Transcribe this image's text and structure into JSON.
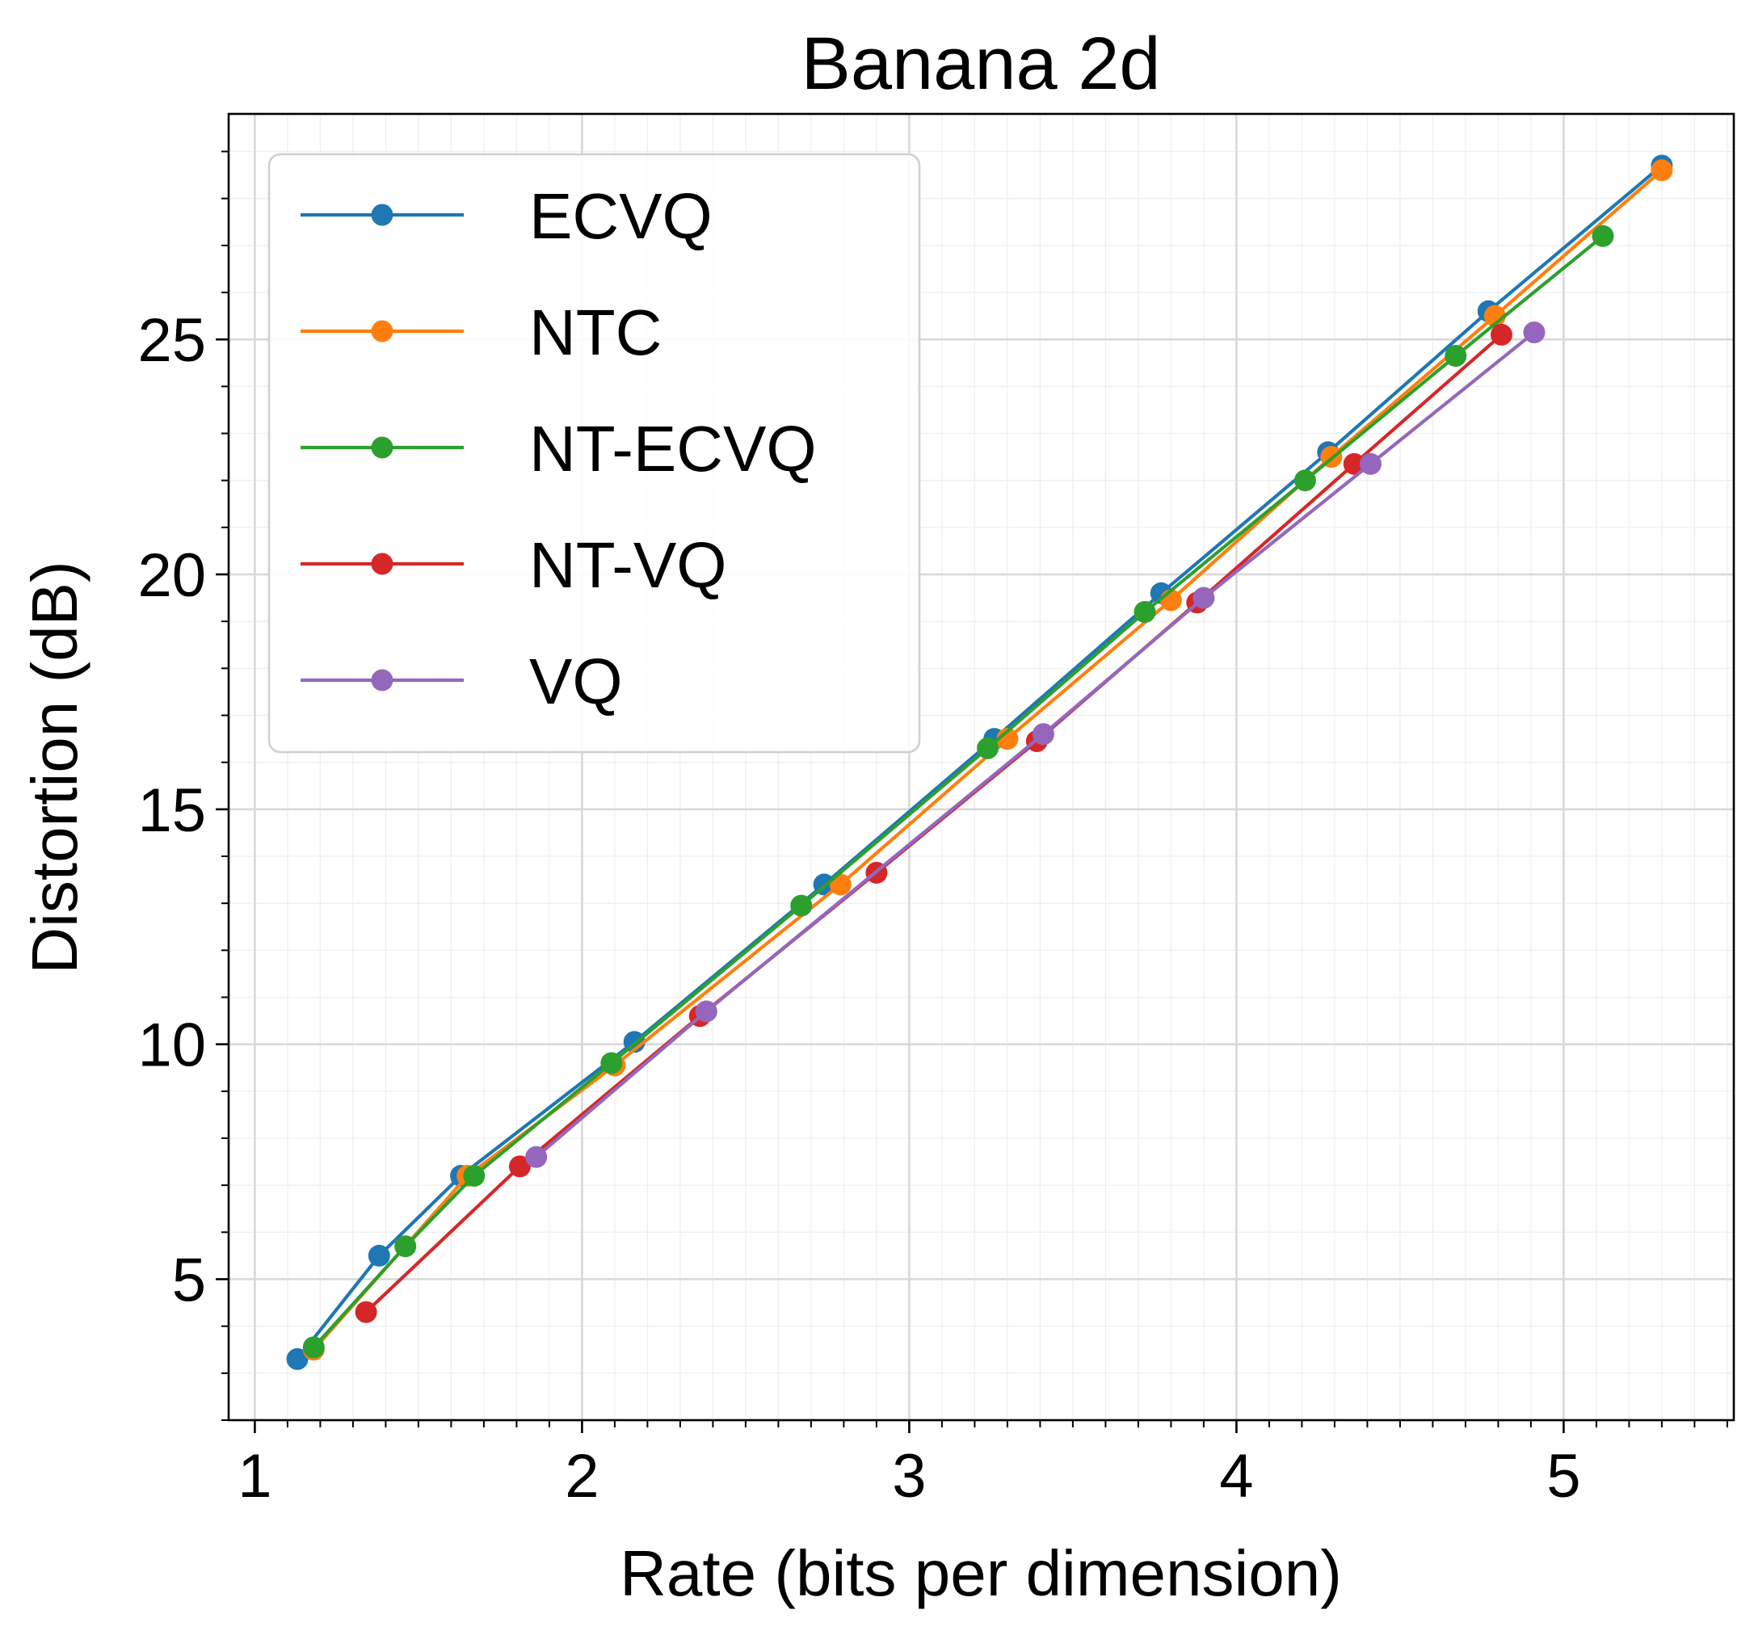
{
  "chart_data": {
    "type": "line",
    "title": "Banana 2d",
    "xlabel": "Rate (bits per dimension)",
    "ylabel": "Distortion (dB)",
    "xlim": [
      0.92,
      5.52
    ],
    "ylim": [
      2.0,
      29.8
    ],
    "xticks": [
      1,
      2,
      3,
      4,
      5
    ],
    "yticks": [
      5,
      10,
      15,
      20,
      25
    ],
    "xtick_labels": [
      "1",
      "2",
      "3",
      "4",
      "5"
    ],
    "ytick_labels": [
      "5",
      "10",
      "15",
      "20",
      "25"
    ],
    "grid": true,
    "minor_grid": true,
    "legend_position": "upper-left",
    "series": [
      {
        "name": "ECVQ",
        "color": "#1f77b4",
        "x": [
          1.13,
          1.38,
          1.63,
          2.16,
          2.74,
          3.26,
          3.77,
          4.28,
          4.77,
          5.3
        ],
        "y": [
          3.3,
          5.5,
          7.2,
          10.05,
          13.4,
          16.5,
          19.6,
          22.6,
          25.6,
          28.7
        ]
      },
      {
        "name": "NTC",
        "color": "#ff7f0e",
        "x": [
          1.18,
          1.65,
          2.1,
          2.79,
          3.3,
          3.8,
          4.29,
          4.79,
          5.3
        ],
        "y": [
          3.5,
          7.2,
          9.55,
          13.4,
          16.5,
          19.45,
          22.5,
          25.5,
          28.6
        ]
      },
      {
        "name": "NT-ECVQ",
        "color": "#2ca02c",
        "x": [
          1.18,
          1.46,
          1.67,
          2.09,
          2.67,
          3.24,
          3.72,
          4.21,
          4.67,
          5.12
        ],
        "y": [
          3.55,
          5.7,
          7.2,
          9.6,
          12.95,
          16.3,
          19.2,
          22.0,
          24.65,
          27.2
        ]
      },
      {
        "name": "NT-VQ",
        "color": "#d62728",
        "x": [
          1.34,
          1.81,
          2.36,
          2.9,
          3.39,
          3.88,
          4.36,
          4.81
        ],
        "y": [
          4.3,
          7.4,
          10.6,
          13.65,
          16.45,
          19.4,
          22.35,
          25.1
        ]
      },
      {
        "name": "VQ",
        "color": "#9467bd",
        "x": [
          1.86,
          2.38,
          3.41,
          3.9,
          4.41,
          4.91
        ],
        "y": [
          7.6,
          10.7,
          16.6,
          19.5,
          22.35,
          25.15
        ]
      }
    ]
  }
}
